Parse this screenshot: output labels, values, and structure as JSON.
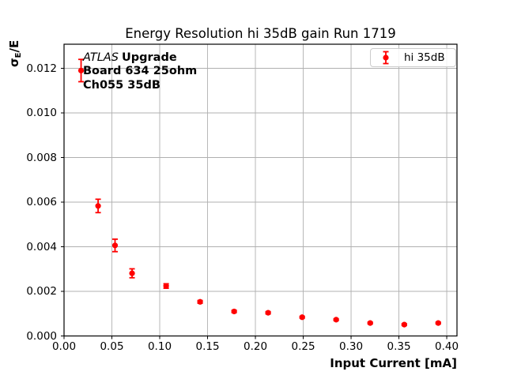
{
  "chart_data": {
    "type": "scatter",
    "title": "Energy Resolution hi 35dB gain Run 1719",
    "xlabel": "Input Current [mA]",
    "ylabel": "σE/E",
    "ylabel_parts": {
      "sigma": "σ",
      "sub": "E",
      "rest": "/E"
    },
    "xlim": [
      0,
      0.4107
    ],
    "ylim": [
      0,
      0.01308
    ],
    "grid": true,
    "grid_color": "#b0b0b0",
    "frame_color": "#000000",
    "annotation": {
      "atlas": "ATLAS",
      "line1": "Upgrade",
      "line2": "Board 634 25ohm",
      "line3": "Ch055 35dB"
    },
    "legend": {
      "position": "upper right",
      "entries": [
        {
          "label": "hi 35dB",
          "color": "#ff0000",
          "marker": "errorbar-point"
        }
      ]
    },
    "x_ticks": [
      {
        "v": 0.0,
        "label": "0.00"
      },
      {
        "v": 0.05,
        "label": "0.05"
      },
      {
        "v": 0.1,
        "label": "0.10"
      },
      {
        "v": 0.15,
        "label": "0.15"
      },
      {
        "v": 0.2,
        "label": "0.20"
      },
      {
        "v": 0.25,
        "label": "0.25"
      },
      {
        "v": 0.3,
        "label": "0.30"
      },
      {
        "v": 0.35,
        "label": "0.35"
      },
      {
        "v": 0.4,
        "label": "0.40"
      }
    ],
    "y_ticks": [
      {
        "v": 0.0,
        "label": "0.000"
      },
      {
        "v": 0.002,
        "label": "0.002"
      },
      {
        "v": 0.004,
        "label": "0.004"
      },
      {
        "v": 0.006,
        "label": "0.006"
      },
      {
        "v": 0.008,
        "label": "0.008"
      },
      {
        "v": 0.01,
        "label": "0.010"
      },
      {
        "v": 0.012,
        "label": "0.012"
      }
    ],
    "series": [
      {
        "name": "hi 35dB",
        "color": "#ff0000",
        "points": [
          {
            "x": 0.0178,
            "y": 0.0119,
            "yerr": 0.0005
          },
          {
            "x": 0.0356,
            "y": 0.00583,
            "yerr": 0.0003
          },
          {
            "x": 0.0533,
            "y": 0.00406,
            "yerr": 0.00028
          },
          {
            "x": 0.0711,
            "y": 0.00281,
            "yerr": 0.0002
          },
          {
            "x": 0.1067,
            "y": 0.00224,
            "yerr": 0.0001
          },
          {
            "x": 0.1422,
            "y": 0.00153,
            "yerr": 6e-05
          },
          {
            "x": 0.1778,
            "y": 0.0011,
            "yerr": 5e-05
          },
          {
            "x": 0.2133,
            "y": 0.00104,
            "yerr": 5e-05
          },
          {
            "x": 0.2489,
            "y": 0.00084,
            "yerr": 4e-05
          },
          {
            "x": 0.2844,
            "y": 0.00073,
            "yerr": 4e-05
          },
          {
            "x": 0.32,
            "y": 0.00058,
            "yerr": 4e-05
          },
          {
            "x": 0.3556,
            "y": 0.00051,
            "yerr": 4e-05
          },
          {
            "x": 0.3911,
            "y": 0.00058,
            "yerr": 4e-05
          }
        ]
      }
    ]
  }
}
